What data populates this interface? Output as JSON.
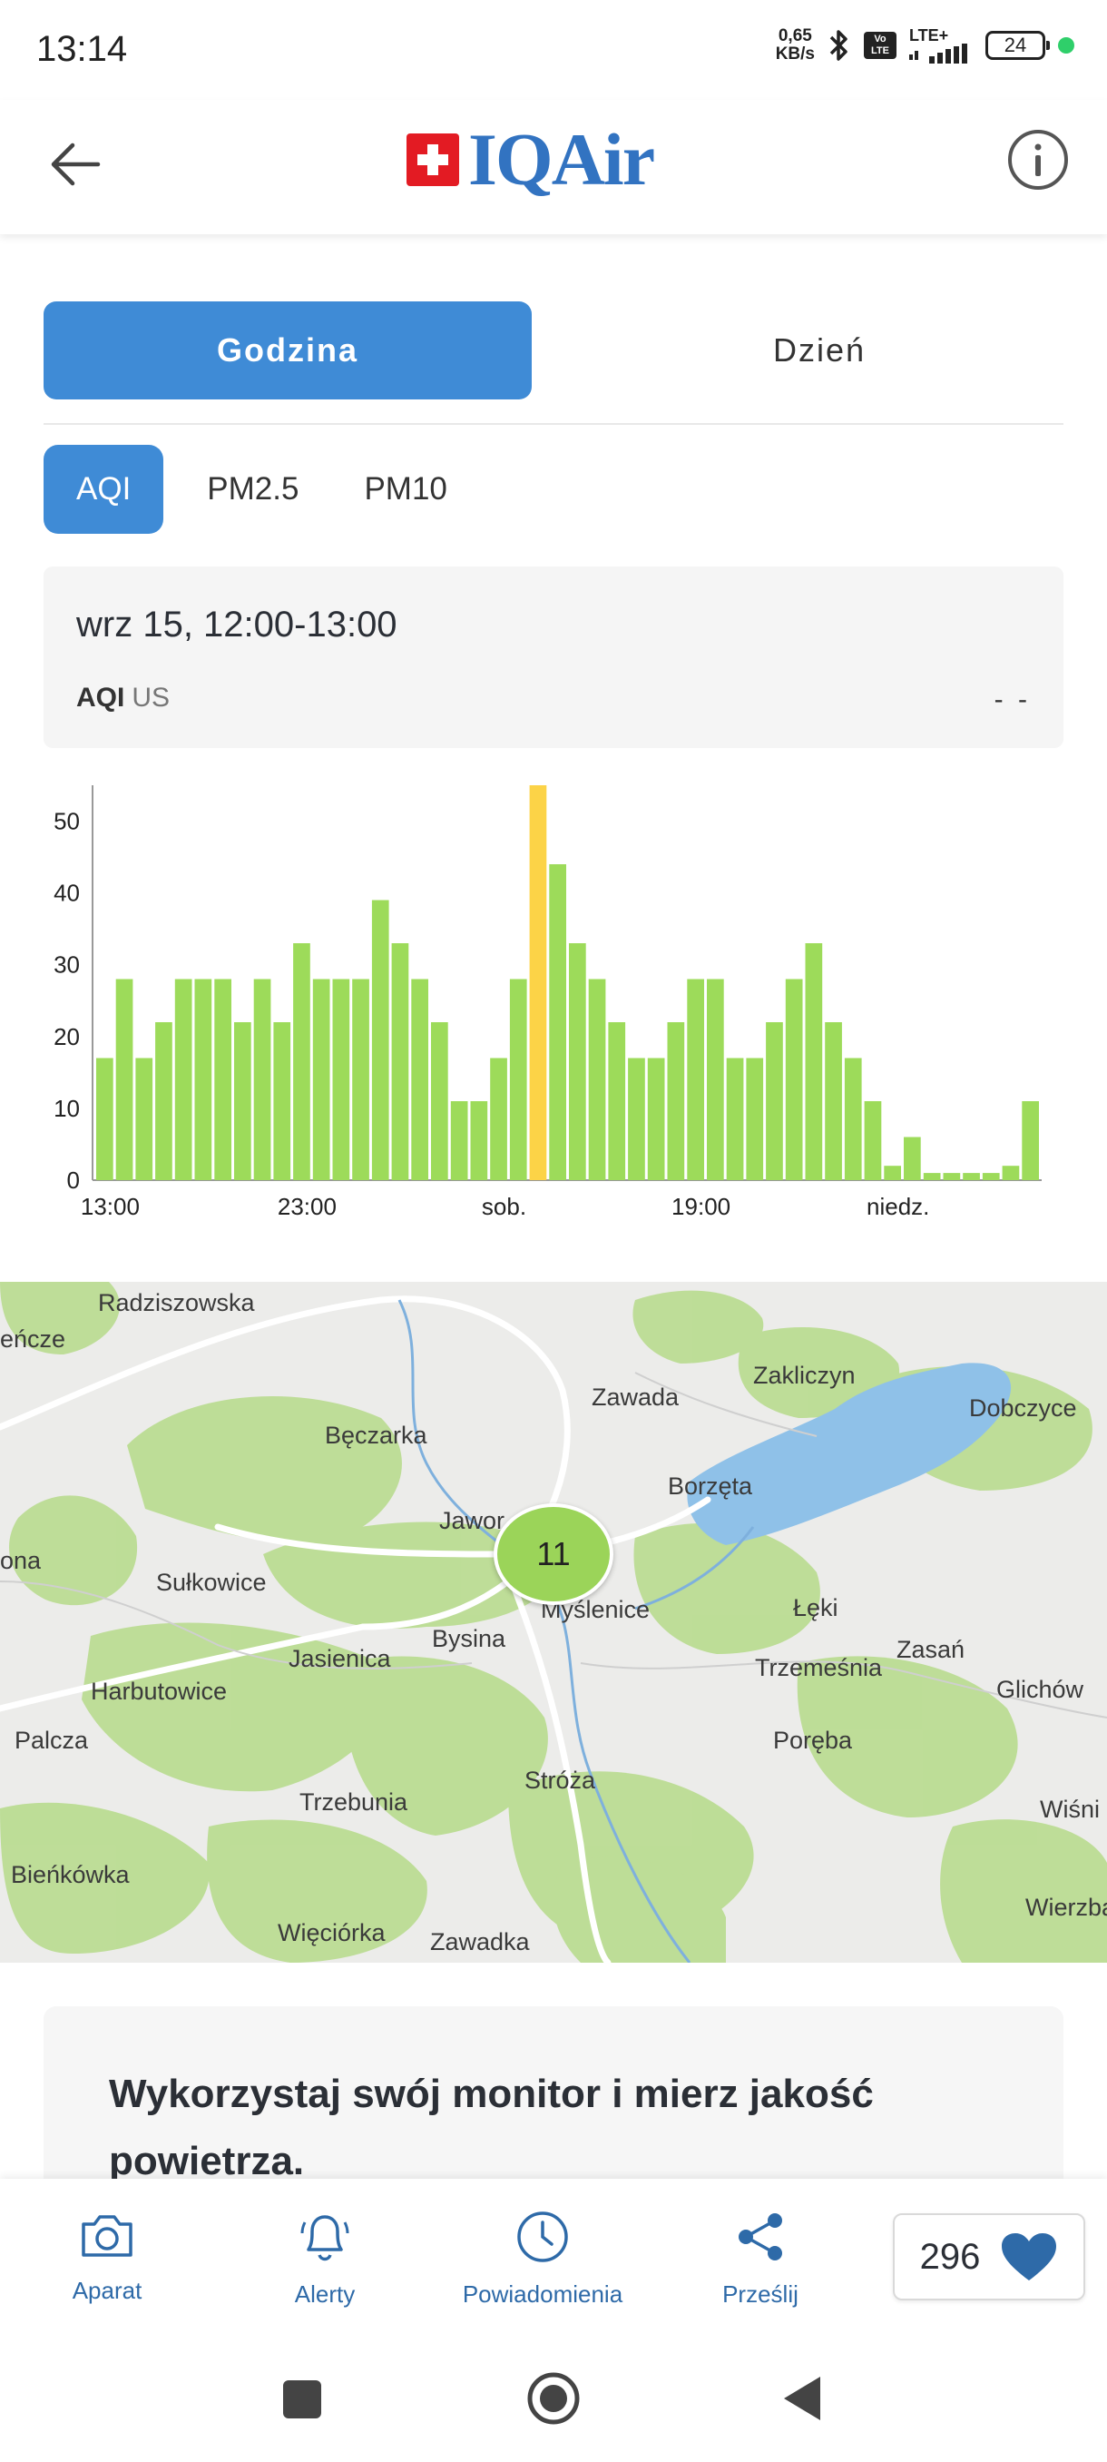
{
  "status_bar": {
    "time": "13:14",
    "net_speed_value": "0,65",
    "net_speed_unit": "KB/s",
    "volte": "Vo LTE",
    "lte": "LTE+",
    "battery": "24"
  },
  "header": {
    "logo_text": "IQAir"
  },
  "range_tabs": {
    "hour": "Godzina",
    "day": "Dzień"
  },
  "metric_tabs": [
    "AQI",
    "PM2.5",
    "PM10"
  ],
  "reading": {
    "date": "wrz 15, 12:00-13:00",
    "label": "AQI",
    "unit": "US",
    "value": "- -"
  },
  "chart_data": {
    "type": "bar",
    "title": "",
    "xlabel": "",
    "ylabel": "",
    "ylim": [
      0,
      55
    ],
    "y_ticks": [
      0,
      10,
      20,
      30,
      40,
      50
    ],
    "x_tick_labels": [
      "13:00",
      "23:00",
      "sob.",
      "19:00",
      "niedz."
    ],
    "x_tick_bar_index": [
      0,
      10,
      20,
      30,
      40
    ],
    "colors": {
      "good": "#9ddb5a",
      "moderate": "#fcd347"
    },
    "values": [
      17,
      28,
      17,
      22,
      28,
      28,
      28,
      22,
      28,
      22,
      33,
      28,
      28,
      28,
      39,
      33,
      28,
      22,
      11,
      11,
      17,
      28,
      55,
      44,
      33,
      28,
      22,
      17,
      17,
      22,
      28,
      28,
      17,
      17,
      22,
      28,
      33,
      22,
      17,
      11,
      2,
      6,
      1,
      1,
      1,
      1,
      2,
      11
    ],
    "highlight_index": 22
  },
  "map": {
    "marker_value": "11",
    "labels": [
      "Radziszowska",
      "eńcze",
      "Zawada",
      "Zakliczyn",
      "Dobczyce",
      "Bęczarka",
      "Borzęta",
      "Jawor",
      "ona",
      "Sułkowice",
      "Myślenice",
      "Łęki",
      "Zasań",
      "Jasienica",
      "Bysina",
      "Trzemeśnia",
      "Glichów",
      "Harbutowice",
      "Palcza",
      "Poręba",
      "Stróża",
      "Trzebunia",
      "Wiśni",
      "Bieńkówka",
      "Wierzba",
      "Więciórka",
      "Zawadka"
    ]
  },
  "promo": {
    "title": "Wykorzystaj swój monitor i mierz jakość powietrza."
  },
  "bottom_nav": {
    "camera": "Aparat",
    "alerts": "Alerty",
    "notifications": "Powiadomienia",
    "share": "Prześlij",
    "likes": "296"
  }
}
